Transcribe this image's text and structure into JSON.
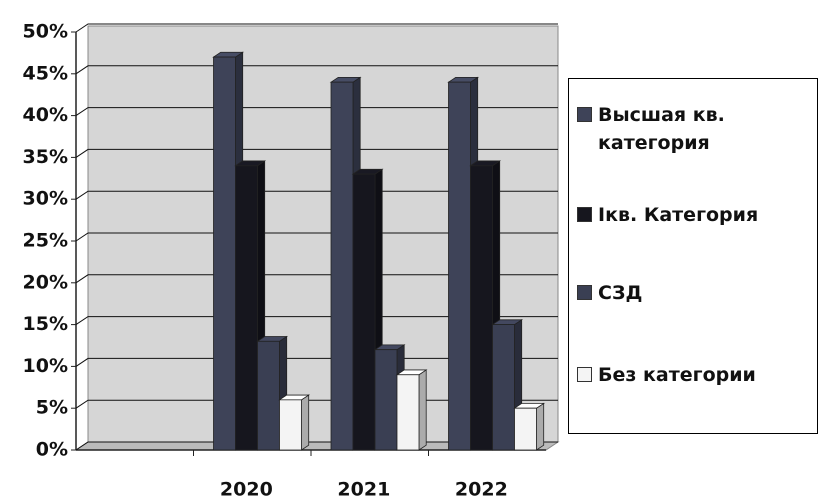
{
  "chart_data": {
    "type": "bar",
    "categories": [
      null,
      "2020",
      "2021",
      "2022"
    ],
    "series": [
      {
        "name": "Высшая кв. категория",
        "color": "#3e4358",
        "values": [
          null,
          47,
          44,
          44
        ]
      },
      {
        "name": "Iкв. Категория",
        "color": "#16161e",
        "values": [
          null,
          34,
          33,
          34
        ]
      },
      {
        "name": "СЗД",
        "color": "#3a3f53",
        "values": [
          null,
          13,
          12,
          15
        ]
      },
      {
        "name": "Без категории",
        "color": "#f4f4f4",
        "values": [
          null,
          6,
          9,
          5
        ]
      }
    ],
    "ylim": [
      0,
      50
    ],
    "yticks": [
      {
        "value": 0,
        "label": "0%"
      },
      {
        "value": 5,
        "label": "5%"
      },
      {
        "value": 10,
        "label": "10%"
      },
      {
        "value": 15,
        "label": "15%"
      },
      {
        "value": 20,
        "label": "20%"
      },
      {
        "value": 25,
        "label": "25%"
      },
      {
        "value": 30,
        "label": "30%"
      },
      {
        "value": 35,
        "label": "35%"
      },
      {
        "value": 40,
        "label": "40%"
      },
      {
        "value": 45,
        "label": "45%"
      },
      {
        "value": 50,
        "label": "50%"
      }
    ],
    "grid": true
  }
}
